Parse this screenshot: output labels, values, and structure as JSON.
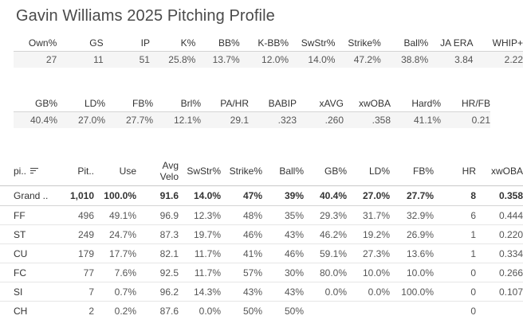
{
  "title": "Gavin Williams 2025 Pitching Profile",
  "summary1": {
    "headers": [
      "Own%",
      "GS",
      "IP",
      "K%",
      "BB%",
      "K-BB%",
      "SwStr%",
      "Strike%",
      "Ball%",
      "JA ERA",
      "WHIP+"
    ],
    "values": [
      "27",
      "11",
      "51",
      "25.8%",
      "13.7%",
      "12.0%",
      "14.0%",
      "47.2%",
      "38.8%",
      "3.84",
      "2.22"
    ]
  },
  "summary2": {
    "headers": [
      "GB%",
      "LD%",
      "FB%",
      "Brl%",
      "PA/HR",
      "BABIP",
      "xAVG",
      "xwOBA",
      "Hard%",
      "HR/FB"
    ],
    "values": [
      "40.4%",
      "27.0%",
      "27.7%",
      "12.1%",
      "29.1",
      ".323",
      ".260",
      ".358",
      "41.1%",
      "0.21"
    ]
  },
  "pitches": {
    "headers": {
      "pitch": "pi..",
      "pitches": "Pit..",
      "use": "Use",
      "avg_velo_1": "Avg",
      "avg_velo_2": "Velo",
      "swstr": "SwStr%",
      "strike": "Strike%",
      "ball": "Ball%",
      "gb": "GB%",
      "ld": "LD%",
      "fb": "FB%",
      "hr": "HR",
      "xwoba": "xwOBA"
    },
    "sort_icon": "sort-descending-icon",
    "grand_total": [
      "Grand ..",
      "1,010",
      "100.0%",
      "91.6",
      "14.0%",
      "47%",
      "39%",
      "40.4%",
      "27.0%",
      "27.7%",
      "8",
      "0.358"
    ],
    "rows": [
      [
        "FF",
        "496",
        "49.1%",
        "96.9",
        "12.3%",
        "48%",
        "35%",
        "29.3%",
        "31.7%",
        "32.9%",
        "6",
        "0.444"
      ],
      [
        "ST",
        "249",
        "24.7%",
        "87.3",
        "19.7%",
        "46%",
        "43%",
        "46.2%",
        "19.2%",
        "26.9%",
        "1",
        "0.220"
      ],
      [
        "CU",
        "179",
        "17.7%",
        "82.1",
        "11.7%",
        "41%",
        "46%",
        "59.1%",
        "27.3%",
        "13.6%",
        "1",
        "0.334"
      ],
      [
        "FC",
        "77",
        "7.6%",
        "92.5",
        "11.7%",
        "57%",
        "30%",
        "80.0%",
        "10.0%",
        "10.0%",
        "0",
        "0.266"
      ],
      [
        "SI",
        "7",
        "0.7%",
        "96.2",
        "14.3%",
        "43%",
        "43%",
        "0.0%",
        "0.0%",
        "100.0%",
        "0",
        "0.107"
      ],
      [
        "CH",
        "2",
        "0.2%",
        "87.6",
        "0.0%",
        "50%",
        "50%",
        "",
        "",
        "",
        "0",
        ""
      ]
    ]
  }
}
